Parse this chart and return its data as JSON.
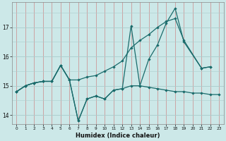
{
  "xlabel": "Humidex (Indice chaleur)",
  "bg_color": "#cce8e8",
  "grid_color": "#aacccc",
  "grid_color_minor": "#dd9999",
  "line_color": "#1a6b6b",
  "xlim": [
    -0.5,
    23.5
  ],
  "ylim": [
    13.7,
    17.85
  ],
  "yticks": [
    14,
    15,
    16,
    17
  ],
  "xticks": [
    0,
    1,
    2,
    3,
    4,
    5,
    6,
    7,
    8,
    9,
    10,
    11,
    12,
    13,
    14,
    15,
    16,
    17,
    18,
    19,
    20,
    21,
    22,
    23
  ],
  "line1_x": [
    0,
    1,
    2,
    3,
    4,
    5,
    6,
    7,
    8,
    9,
    10,
    11,
    12,
    13,
    14,
    15,
    16,
    17,
    18,
    19,
    21,
    22
  ],
  "line1_y": [
    14.8,
    15.0,
    15.1,
    15.15,
    15.15,
    15.7,
    15.2,
    13.8,
    14.55,
    14.65,
    14.55,
    14.85,
    14.9,
    17.05,
    15.0,
    15.9,
    16.4,
    17.15,
    17.65,
    16.5,
    15.6,
    15.65
  ],
  "line2_x": [
    0,
    1,
    2,
    3,
    4,
    5,
    6,
    7,
    8,
    9,
    10,
    11,
    12,
    13,
    14,
    15,
    16,
    17,
    18,
    19,
    21,
    22
  ],
  "line2_y": [
    14.8,
    15.0,
    15.1,
    15.15,
    15.15,
    15.7,
    15.2,
    15.2,
    15.3,
    15.35,
    15.5,
    15.65,
    15.85,
    16.3,
    16.55,
    16.75,
    17.0,
    17.2,
    17.3,
    16.55,
    15.6,
    15.65
  ],
  "line3_x": [
    0,
    1,
    2,
    3,
    4,
    5,
    6,
    7,
    8,
    9,
    10,
    11,
    12,
    13,
    14,
    15,
    16,
    17,
    18,
    19,
    20,
    21,
    22,
    23
  ],
  "line3_y": [
    14.8,
    15.0,
    15.1,
    15.15,
    15.15,
    15.7,
    15.2,
    13.8,
    14.55,
    14.65,
    14.55,
    14.85,
    14.9,
    15.0,
    15.0,
    14.95,
    14.9,
    14.85,
    14.8,
    14.8,
    14.75,
    14.75,
    14.7,
    14.7
  ]
}
